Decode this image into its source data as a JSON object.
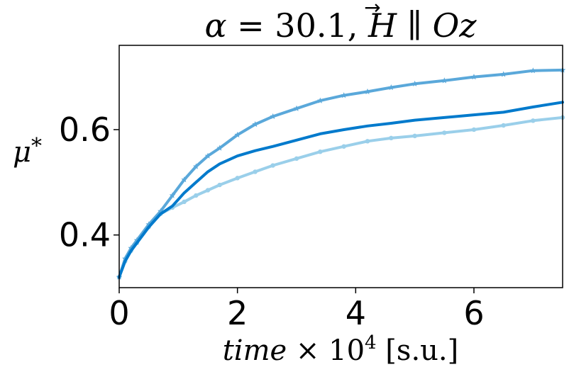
{
  "chart_data": {
    "type": "line",
    "title_parts": {
      "alpha": "α",
      "eq": " = 30.1, ",
      "h_vector": "H",
      "arrow": "→",
      "parallel": " ∥ ",
      "axis": "Oz"
    },
    "xlabel_parts": {
      "var": "time",
      "times": " × 10",
      "exp": "4",
      "unit": " [s.u.]"
    },
    "ylabel_parts": {
      "var": "μ",
      "star": "*"
    },
    "xlim": [
      0,
      7.5
    ],
    "ylim": [
      0.3,
      0.76
    ],
    "xticks": [
      0,
      2,
      4,
      6
    ],
    "xtick_labels": [
      "0",
      "2",
      "4",
      "6"
    ],
    "yticks": [
      0.4,
      0.6
    ],
    "ytick_labels": [
      "0.4",
      "0.6"
    ],
    "grid": false,
    "series": [
      {
        "color": "#5AA8DA",
        "marker": "star",
        "x": [
          0,
          0.1,
          0.2,
          0.3,
          0.5,
          0.7,
          0.9,
          1.1,
          1.3,
          1.5,
          1.7,
          2.0,
          2.3,
          2.6,
          3.0,
          3.4,
          3.8,
          4.2,
          4.6,
          5.0,
          5.5,
          6.0,
          6.5,
          7.0,
          7.5
        ],
        "y": [
          0.32,
          0.355,
          0.375,
          0.39,
          0.42,
          0.445,
          0.475,
          0.505,
          0.53,
          0.55,
          0.565,
          0.59,
          0.61,
          0.625,
          0.64,
          0.655,
          0.665,
          0.672,
          0.68,
          0.687,
          0.693,
          0.7,
          0.705,
          0.712,
          0.713
        ]
      },
      {
        "color": "#007ACC",
        "marker": "none",
        "x": [
          0,
          0.1,
          0.2,
          0.3,
          0.5,
          0.7,
          0.9,
          1.1,
          1.3,
          1.5,
          1.7,
          2.0,
          2.3,
          2.6,
          3.0,
          3.4,
          3.8,
          4.2,
          4.6,
          5.0,
          5.5,
          6.0,
          6.5,
          7.0,
          7.5
        ],
        "y": [
          0.32,
          0.35,
          0.37,
          0.385,
          0.415,
          0.44,
          0.455,
          0.48,
          0.5,
          0.52,
          0.535,
          0.55,
          0.56,
          0.568,
          0.58,
          0.592,
          0.6,
          0.607,
          0.612,
          0.618,
          0.623,
          0.628,
          0.633,
          0.643,
          0.652
        ]
      },
      {
        "color": "#9ACFEA",
        "marker": "circle",
        "x": [
          0,
          0.1,
          0.2,
          0.3,
          0.5,
          0.7,
          0.9,
          1.1,
          1.3,
          1.5,
          1.7,
          2.0,
          2.3,
          2.6,
          3.0,
          3.4,
          3.8,
          4.2,
          4.6,
          5.0,
          5.5,
          6.0,
          6.5,
          7.0,
          7.5
        ],
        "y": [
          0.32,
          0.35,
          0.37,
          0.385,
          0.415,
          0.44,
          0.452,
          0.463,
          0.475,
          0.485,
          0.495,
          0.508,
          0.52,
          0.532,
          0.545,
          0.558,
          0.568,
          0.578,
          0.584,
          0.588,
          0.594,
          0.6,
          0.608,
          0.617,
          0.623
        ]
      }
    ]
  }
}
